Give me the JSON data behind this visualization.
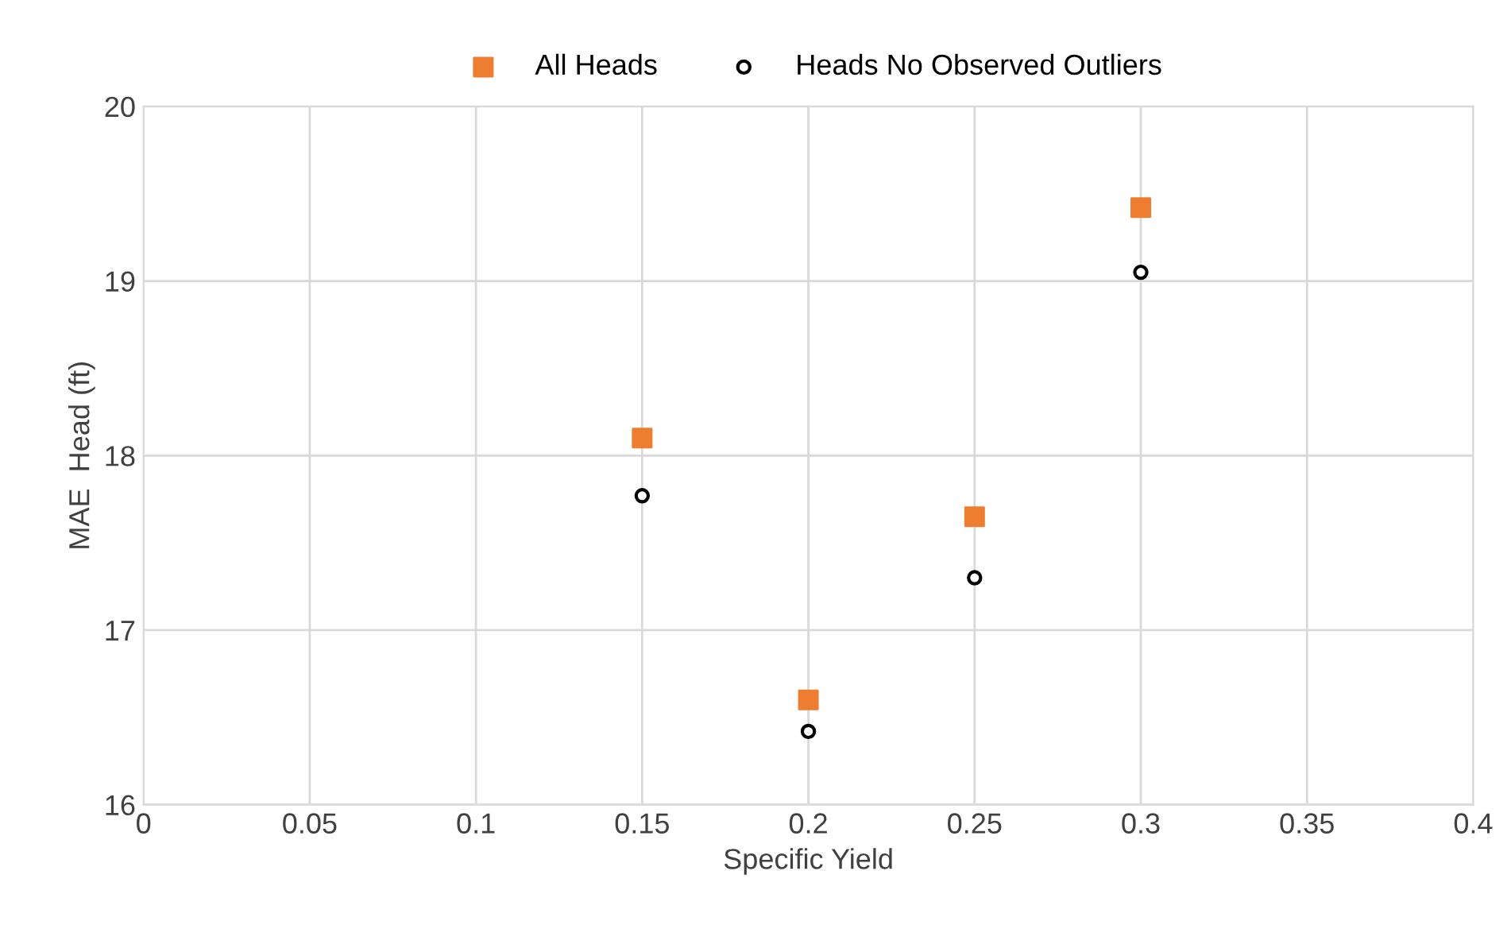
{
  "chart_data": {
    "type": "scatter",
    "xlabel": "Specific Yield",
    "ylabel": "MAE  Head (ft)",
    "xlim": [
      0,
      0.4
    ],
    "xticks": [
      0,
      0.05,
      0.1,
      0.15,
      0.2,
      0.25,
      0.3,
      0.35,
      0.4
    ],
    "ylim": [
      16,
      20
    ],
    "yticks": [
      16,
      17,
      18,
      19,
      20
    ],
    "grid": true,
    "legend": "top",
    "series": [
      {
        "name": "All Heads",
        "color": "#ed7d31",
        "marker": "square",
        "x": [
          0.15,
          0.2,
          0.25,
          0.3
        ],
        "values": [
          18.1,
          16.6,
          17.65,
          19.42
        ]
      },
      {
        "name": "Heads No Observed Outliers",
        "color": "#000000",
        "marker": "circle",
        "x": [
          0.15,
          0.2,
          0.25,
          0.3
        ],
        "values": [
          17.77,
          16.42,
          17.3,
          19.05
        ]
      }
    ]
  }
}
